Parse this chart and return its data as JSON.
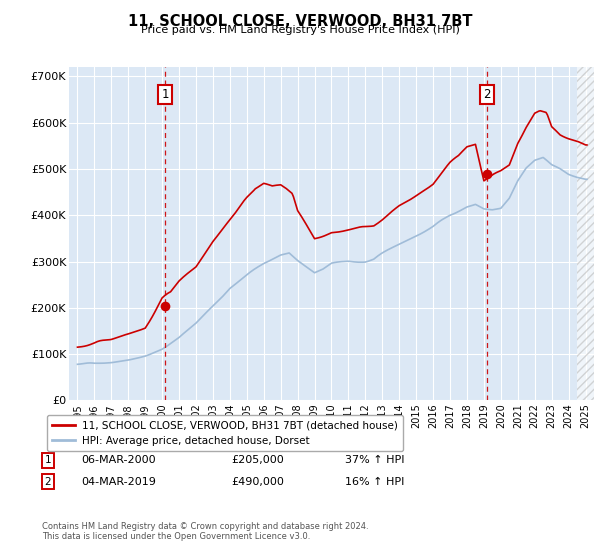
{
  "title": "11, SCHOOL CLOSE, VERWOOD, BH31 7BT",
  "subtitle": "Price paid vs. HM Land Registry's House Price Index (HPI)",
  "ylim": [
    0,
    720000
  ],
  "yticks": [
    0,
    100000,
    200000,
    300000,
    400000,
    500000,
    600000,
    700000
  ],
  "ytick_labels": [
    "£0",
    "£100K",
    "£200K",
    "£300K",
    "£400K",
    "£500K",
    "£600K",
    "£700K"
  ],
  "hpi_color": "#a0bcd8",
  "price_color": "#cc0000",
  "bg_color": "#dce8f5",
  "grid_color": "#ffffff",
  "legend_label_price": "11, SCHOOL CLOSE, VERWOOD, BH31 7BT (detached house)",
  "legend_label_hpi": "HPI: Average price, detached house, Dorset",
  "annotation1_date": "06-MAR-2000",
  "annotation1_price": "£205,000",
  "annotation1_hpi": "37% ↑ HPI",
  "annotation2_date": "04-MAR-2019",
  "annotation2_price": "£490,000",
  "annotation2_hpi": "16% ↑ HPI",
  "footer": "Contains HM Land Registry data © Crown copyright and database right 2024.\nThis data is licensed under the Open Government Licence v3.0.",
  "sale1_year": 2000.17,
  "sale1_price": 205000,
  "sale2_year": 2019.17,
  "sale2_price": 490000,
  "xlim_start": 1994.5,
  "xlim_end": 2025.5,
  "hatch_start": 2024.5,
  "xtick_years": [
    1995,
    1996,
    1997,
    1998,
    1999,
    2000,
    2001,
    2002,
    2003,
    2004,
    2005,
    2006,
    2007,
    2008,
    2009,
    2010,
    2011,
    2012,
    2013,
    2014,
    2015,
    2016,
    2017,
    2018,
    2019,
    2020,
    2021,
    2022,
    2023,
    2024,
    2025
  ]
}
